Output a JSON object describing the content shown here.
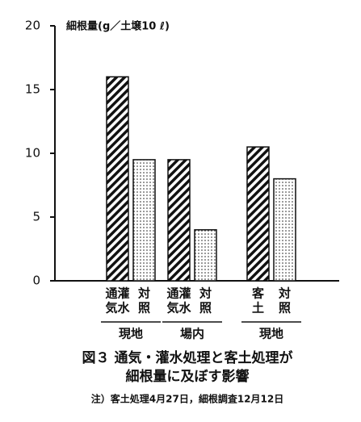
{
  "chart_data": {
    "type": "bar",
    "ylabel": "細根量(g／土壌10 ℓ)",
    "ylim": [
      0,
      20
    ],
    "yticks": [
      0,
      5,
      10,
      15,
      20
    ],
    "patterns": [
      "hatch",
      "dots"
    ],
    "groups": [
      {
        "label": "現地",
        "categories": [
          [
            "通灌",
            "気水"
          ],
          [
            "対",
            "照"
          ]
        ],
        "values": [
          16,
          9.5
        ]
      },
      {
        "label": "場内",
        "categories": [
          [
            "通灌",
            "気水"
          ],
          [
            "対",
            "照"
          ]
        ],
        "values": [
          9.5,
          4
        ]
      },
      {
        "label": "現地",
        "categories": [
          [
            "客",
            "土"
          ],
          [
            "対",
            "照"
          ]
        ],
        "values": [
          10.5,
          8
        ]
      }
    ],
    "title": [
      "図３ 通気・灌水処理と客土処理が",
      "細根量に及ぼす影響"
    ],
    "note": "注）客土処理4月27日，細根調査12月12日"
  }
}
